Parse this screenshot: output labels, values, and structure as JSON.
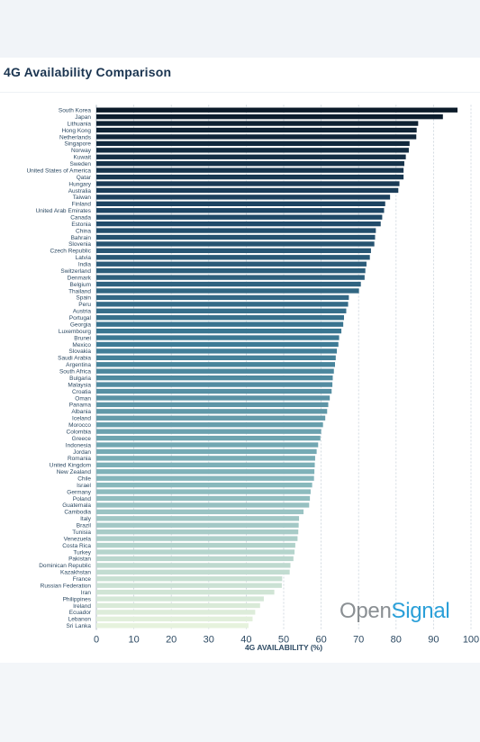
{
  "title": "4G Availability Comparison",
  "logo": {
    "part1": "Open",
    "part2": "Signal"
  },
  "colors": {
    "darkest": "#0c1b2a",
    "lightest": "#e6f2dd"
  },
  "chart_data": {
    "type": "bar",
    "orientation": "horizontal",
    "title": "4G Availability Comparison",
    "xlabel": "4G AVAILABILITY (%)",
    "ylabel": "",
    "xlim": [
      0,
      100
    ],
    "xticks": [
      0,
      10,
      20,
      30,
      40,
      50,
      60,
      70,
      80,
      90,
      100
    ],
    "grid": true,
    "categories": [
      "South Korea",
      "Japan",
      "Lithuania",
      "Hong Kong",
      "Netherlands",
      "Singapore",
      "Norway",
      "Kuwait",
      "Sweden",
      "United States of America",
      "Qatar",
      "Hungary",
      "Australia",
      "Taiwan",
      "Finland",
      "United Arab Emirates",
      "Canada",
      "Estonia",
      "China",
      "Bahrain",
      "Slovenia",
      "Czech Republic",
      "Latvia",
      "India",
      "Switzerland",
      "Denmark",
      "Belgium",
      "Thailand",
      "Spain",
      "Peru",
      "Austria",
      "Portugal",
      "Georgia",
      "Luxembourg",
      "Brunei",
      "Mexico",
      "Slovakia",
      "Saudi Arabia",
      "Argentina",
      "South Africa",
      "Bulgaria",
      "Malaysia",
      "Croatia",
      "Oman",
      "Panama",
      "Albania",
      "Iceland",
      "Morocco",
      "Colombia",
      "Greece",
      "Indonesia",
      "Jordan",
      "Romania",
      "United Kingdom",
      "New Zealand",
      "Chile",
      "Israel",
      "Germany",
      "Poland",
      "Guatemala",
      "Cambodia",
      "Italy",
      "Brazil",
      "Tunisia",
      "Venezuela",
      "Costa Rica",
      "Turkey",
      "Pakistan",
      "Dominican Republic",
      "Kazakhstan",
      "France",
      "Russian Federation",
      "Iran",
      "Philippines",
      "Ireland",
      "Ecuador",
      "Lebanon",
      "Sri Lanka"
    ],
    "values": [
      96.4,
      92.5,
      85.9,
      85.5,
      85.4,
      83.6,
      83.4,
      82.6,
      82.2,
      82.0,
      82.0,
      80.9,
      80.6,
      78.4,
      77.1,
      76.8,
      76.3,
      75.9,
      74.6,
      74.4,
      74.2,
      73.3,
      73.0,
      72.1,
      71.8,
      71.6,
      70.6,
      70.1,
      67.4,
      67.2,
      66.7,
      66.1,
      65.9,
      65.4,
      64.8,
      64.6,
      64.2,
      63.9,
      63.7,
      63.4,
      63.1,
      63.0,
      62.8,
      62.3,
      61.9,
      61.6,
      61.1,
      60.5,
      60.0,
      59.8,
      59.2,
      58.8,
      58.4,
      58.3,
      58.2,
      58.1,
      57.6,
      57.2,
      57.0,
      56.8,
      55.3,
      54.1,
      54.0,
      53.9,
      53.7,
      53.1,
      52.9,
      52.6,
      51.8,
      51.6,
      49.6,
      49.5,
      47.5,
      44.7,
      43.7,
      42.4,
      41.7,
      40.6
    ]
  }
}
